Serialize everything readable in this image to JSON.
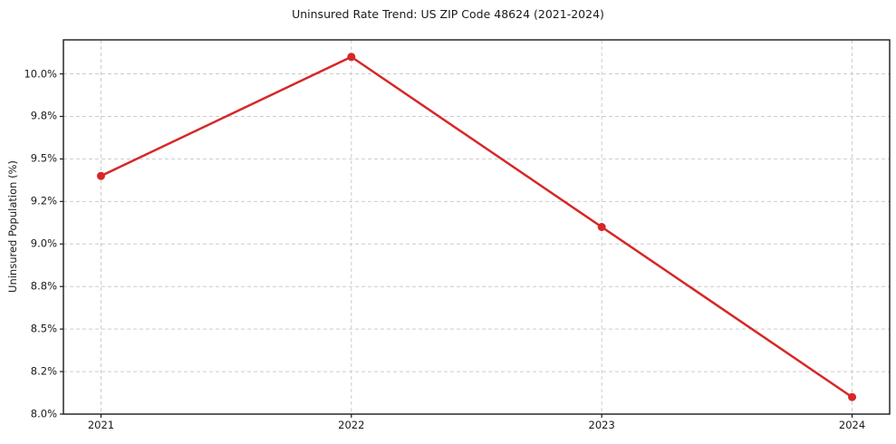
{
  "chart_data": {
    "type": "line",
    "title": "Uninsured Rate Trend: US ZIP Code 48624 (2021-2024)",
    "xlabel": "",
    "ylabel": "Uninsured Population (%)",
    "x": [
      2021,
      2022,
      2023,
      2024
    ],
    "values": [
      9.4,
      10.1,
      9.1,
      8.1
    ],
    "categories": [
      "2021",
      "2022",
      "2023",
      "2024"
    ],
    "xlim": [
      2020.85,
      2024.15
    ],
    "ylim": [
      8.0,
      10.2
    ],
    "yticks": {
      "values": [
        8.0,
        8.25,
        8.5,
        8.75,
        9.0,
        9.25,
        9.5,
        9.75,
        10.0
      ],
      "labels": [
        "8.0%",
        "8.2%",
        "8.5%",
        "8.8%",
        "9.0%",
        "9.2%",
        "9.5%",
        "9.8%",
        "10.0%"
      ]
    },
    "xticks": {
      "values": [
        2021,
        2022,
        2023,
        2024
      ],
      "labels": [
        "2021",
        "2022",
        "2023",
        "2024"
      ]
    },
    "grid": true,
    "grid_style": "dashed",
    "legend": "none",
    "marker": "circle",
    "colors": {
      "line": "#d62728",
      "marker": "#d62728",
      "grid": "#cccccc",
      "spine": "#1a1a1a",
      "text": "#1a1a1a",
      "background": "#ffffff"
    }
  }
}
